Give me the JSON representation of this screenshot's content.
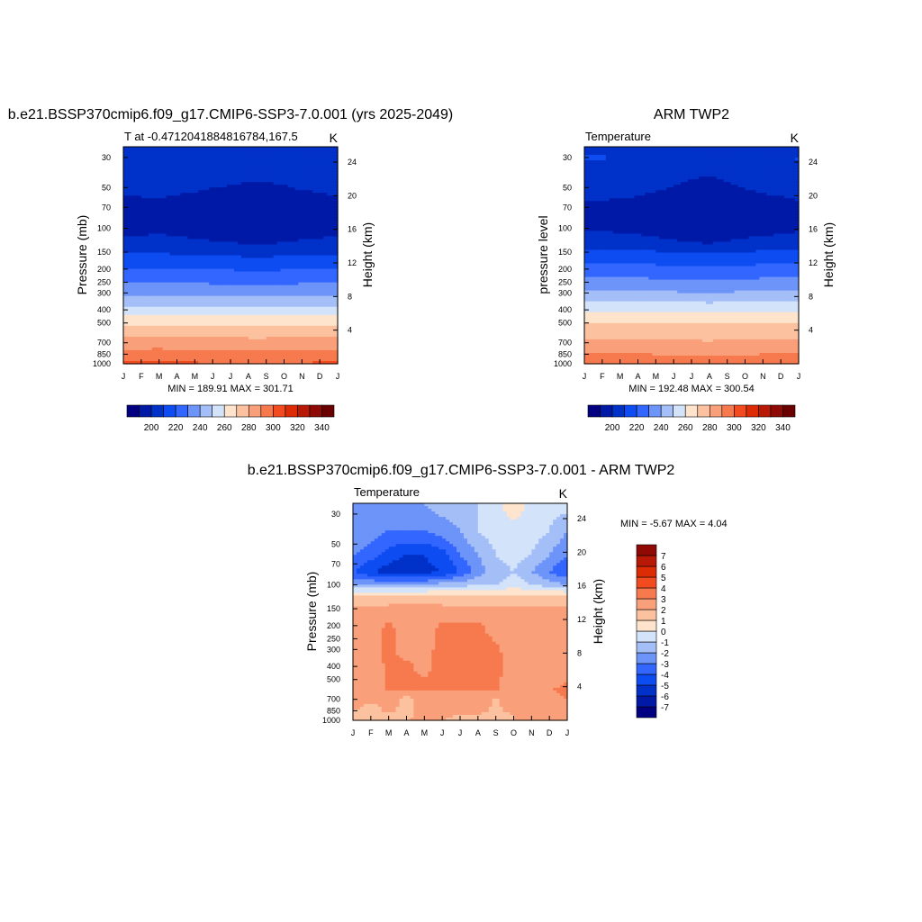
{
  "chart_data": [
    {
      "type": "heatmap",
      "panel": "model",
      "title": "b.e21.BSSP370cmip6.f09_g17.CMIP6-SSP3-7.0.001 (yrs 2025-2049)",
      "subtitle_left": "T at -0.4712041884816784,167.5",
      "subtitle_right": "K",
      "ylabel": "Pressure (mb)",
      "ylabel_right": "Height (km)",
      "x_ticks": [
        "J",
        "F",
        "M",
        "A",
        "M",
        "J",
        "J",
        "A",
        "S",
        "O",
        "N",
        "D",
        "J"
      ],
      "y_ticks": [
        30,
        50,
        70,
        100,
        150,
        200,
        250,
        300,
        400,
        500,
        700,
        850,
        1000
      ],
      "y_right_ticks": [
        4,
        8,
        12,
        16,
        20,
        24
      ],
      "ylim": [
        1000,
        25
      ],
      "stats": "MIN = 189.91 MAX = 301.71",
      "levels": [
        190,
        200,
        210,
        220,
        230,
        240,
        250,
        260,
        270,
        280,
        290,
        300,
        310,
        320,
        330,
        340
      ],
      "colorbar_labels": [
        200,
        220,
        240,
        260,
        280,
        300,
        320,
        340
      ],
      "colors": [
        "#000080",
        "#0019a6",
        "#0031c8",
        "#0d4cf0",
        "#3366ff",
        "#6d94f8",
        "#a4bff7",
        "#d3e3fa",
        "#fee4cc",
        "#fcc2a0",
        "#f9a07a",
        "#f77a4f",
        "#f24b1f",
        "#db2c06",
        "#b81907",
        "#8f0a05",
        "#6a0000"
      ],
      "temperature_profile_K": {
        "pressure": [
          25,
          30,
          50,
          70,
          100,
          150,
          200,
          250,
          300,
          400,
          500,
          700,
          850,
          1000
        ],
        "values": [
          205,
          207,
          201,
          193,
          194,
          208,
          220,
          229,
          238,
          254,
          268,
          285,
          294,
          301
        ]
      },
      "monthly_offset_K": [
        1.5,
        1.5,
        2,
        1,
        0.5,
        -0.5,
        -1,
        -1.5,
        -1.5,
        -1,
        0,
        0.5,
        1.5
      ]
    },
    {
      "type": "heatmap",
      "panel": "obs",
      "title": "ARM TWP2",
      "subtitle_left": "Temperature",
      "subtitle_right": "K",
      "ylabel": "pressure level",
      "ylabel_right": "Height (km)",
      "x_ticks": [
        "J",
        "F",
        "M",
        "A",
        "M",
        "J",
        "J",
        "A",
        "S",
        "O",
        "N",
        "D",
        "J"
      ],
      "y_ticks": [
        30,
        50,
        70,
        100,
        150,
        200,
        250,
        300,
        400,
        500,
        700,
        850,
        1000
      ],
      "y_right_ticks": [
        4,
        8,
        12,
        16,
        20,
        24
      ],
      "ylim": [
        1000,
        25
      ],
      "stats": "MIN = 192.48 MAX = 300.54",
      "levels": [
        190,
        200,
        210,
        220,
        230,
        240,
        250,
        260,
        270,
        280,
        290,
        300,
        310,
        320,
        330,
        340
      ],
      "colorbar_labels": [
        200,
        220,
        240,
        260,
        280,
        300,
        320,
        340
      ],
      "temperature_profile_K": {
        "pressure": [
          25,
          30,
          50,
          70,
          100,
          150,
          200,
          250,
          300,
          400,
          500,
          700,
          850,
          1000
        ],
        "values": [
          206,
          208,
          202,
          195,
          196,
          211,
          224,
          233,
          242,
          258,
          271,
          282,
          290,
          298
        ]
      },
      "monthly_offset_K": [
        1.5,
        1.5,
        1,
        0.5,
        -0.5,
        -1.5,
        -2.5,
        -3,
        -2,
        -1,
        0,
        0.5,
        1.5
      ]
    },
    {
      "type": "heatmap",
      "panel": "difference",
      "title": "b.e21.BSSP370cmip6.f09_g17.CMIP6-SSP3-7.0.001 - ARM TWP2",
      "subtitle_left": "Temperature",
      "subtitle_right": "K",
      "ylabel": "Pressure (mb)",
      "ylabel_right": "Height (km)",
      "x_ticks": [
        "J",
        "F",
        "M",
        "A",
        "M",
        "J",
        "J",
        "A",
        "S",
        "O",
        "N",
        "D",
        "J"
      ],
      "y_ticks": [
        30,
        50,
        70,
        100,
        150,
        200,
        250,
        300,
        400,
        500,
        700,
        850,
        1000
      ],
      "y_right_ticks": [
        4,
        8,
        12,
        16,
        20,
        24
      ],
      "ylim": [
        1000,
        25
      ],
      "stats": "MIN = -5.67 MAX = 4.04",
      "levels": [
        -7,
        -6,
        -5,
        -4,
        -3,
        -2,
        -1,
        0,
        1,
        2,
        3,
        4,
        5,
        6,
        7
      ],
      "colorbar_labels": [
        -7,
        -6,
        -5,
        -4,
        -3,
        -2,
        -1,
        0,
        1,
        2,
        3,
        4,
        5,
        6,
        7
      ],
      "colors": [
        "#000080",
        "#0019a6",
        "#0031c8",
        "#0d4cf0",
        "#3366ff",
        "#6d94f8",
        "#a4bff7",
        "#d3e3fa",
        "#fee4cc",
        "#fcc2a0",
        "#f9a07a",
        "#f77a4f",
        "#f24b1f",
        "#db2c06",
        "#b81907",
        "#8f0a05"
      ],
      "grid_pressure": [
        25,
        40,
        60,
        80,
        100,
        120,
        150,
        200,
        300,
        400,
        500,
        600,
        700,
        800,
        900,
        1000
      ],
      "grid_values": [
        [
          -2,
          -2,
          -2,
          -2,
          -2,
          -1.5,
          -1.5,
          -1,
          -0.5,
          1,
          -0.5,
          -0.5,
          -0.5
        ],
        [
          -2,
          -2.5,
          -3,
          -3,
          -3,
          -2.5,
          -2,
          -1,
          -0.5,
          -0.5,
          -0.5,
          -1,
          -2
        ],
        [
          -3,
          -3.5,
          -4.5,
          -5,
          -5,
          -4.5,
          -3,
          -2,
          -1,
          -0.5,
          -1,
          -2,
          -3
        ],
        [
          -4,
          -5,
          -5.5,
          -5.6,
          -5.3,
          -5,
          -4,
          -2.5,
          -1.5,
          -1,
          -2,
          -3,
          -4
        ],
        [
          -2,
          -2,
          -2,
          -2,
          -2,
          -1.5,
          -1.5,
          -1,
          -1,
          -0.5,
          -1,
          -1.5,
          -2
        ],
        [
          1.2,
          1.2,
          1.2,
          1.2,
          1.2,
          1.2,
          1.2,
          1.2,
          1.2,
          1.2,
          1.2,
          1.2,
          1.2
        ],
        [
          2.3,
          2.3,
          2.3,
          2.5,
          2.5,
          2.3,
          2.3,
          2.3,
          2.3,
          2.3,
          2.3,
          2.3,
          2.3
        ],
        [
          2.5,
          2.5,
          3.2,
          2.5,
          2.5,
          3.2,
          3.2,
          3.2,
          2.5,
          2.5,
          2.5,
          2.5,
          2.5
        ],
        [
          2.5,
          2.5,
          3.3,
          2.5,
          2.5,
          3.5,
          3.5,
          3.5,
          3.2,
          2.5,
          2.5,
          2.5,
          2.5
        ],
        [
          2.5,
          2.5,
          3.2,
          3.3,
          2.5,
          3.6,
          3.6,
          3.6,
          3.3,
          2.5,
          2.5,
          2.5,
          3
        ],
        [
          2.5,
          2.5,
          3.2,
          3.3,
          3.1,
          3.5,
          3.5,
          3.5,
          3.2,
          2.5,
          2.5,
          2.5,
          3
        ],
        [
          3,
          3,
          3,
          3.2,
          3.1,
          3.1,
          3.1,
          3.1,
          3.1,
          2.5,
          2.5,
          3,
          3.2
        ],
        [
          3,
          2.5,
          2.5,
          1.5,
          2.5,
          2.5,
          2.5,
          2.5,
          1.8,
          2.5,
          2.5,
          2.5,
          3
        ],
        [
          2.5,
          1.5,
          2.5,
          1.5,
          2.5,
          3,
          2.5,
          2.5,
          1.8,
          2.5,
          2.5,
          2.5,
          3
        ],
        [
          1.5,
          1.5,
          2,
          1.5,
          2.5,
          2.5,
          2,
          2,
          1.8,
          2,
          2.5,
          2.5,
          2
        ],
        [
          1.5,
          1.5,
          2,
          2,
          2.5,
          2,
          1.5,
          1.5,
          1.5,
          2,
          2,
          2,
          2
        ]
      ]
    }
  ]
}
